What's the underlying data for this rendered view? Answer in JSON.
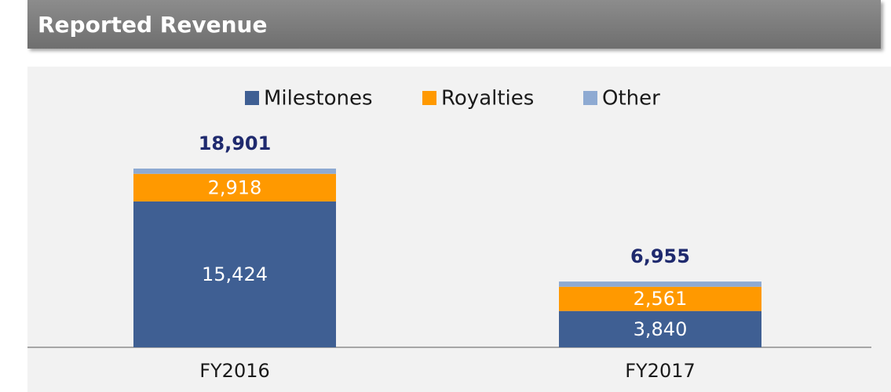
{
  "title": "Reported Revenue",
  "chart_data": {
    "type": "stacked_bar",
    "categories": [
      "FY2016",
      "FY2017"
    ],
    "series": [
      {
        "name": "Milestones",
        "color": "#3f5f93",
        "values": [
          15424,
          3840
        ],
        "value_labels": [
          "15,424",
          "3,840"
        ]
      },
      {
        "name": "Royalties",
        "color": "#ff9900",
        "values": [
          2918,
          2561
        ],
        "value_labels": [
          "2,918",
          "2,561"
        ]
      },
      {
        "name": "Other",
        "color": "#8eaad2",
        "values": [
          559,
          554
        ]
      }
    ],
    "totals": [
      18901,
      6955
    ],
    "total_labels": [
      "18,901",
      "6,955"
    ],
    "legend": "top"
  }
}
